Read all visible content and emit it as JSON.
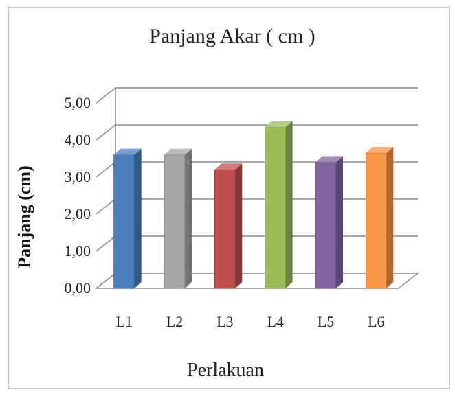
{
  "chart_data": {
    "type": "bar",
    "title": "Panjang Akar ( cm )",
    "xlabel": "Perlakuan",
    "ylabel": "Panjang (cm)",
    "categories": [
      "L1",
      "L2",
      "L3",
      "L4",
      "L5",
      "L6"
    ],
    "values": [
      3.6,
      3.6,
      3.2,
      4.35,
      3.4,
      3.65
    ],
    "ylim": [
      0,
      5
    ],
    "yticks": [
      "0,00",
      "1,00",
      "2,00",
      "3,00",
      "4,00",
      "5,00"
    ],
    "grid": true,
    "legend": "none",
    "colors": {
      "L1": "#4a7ebf",
      "L2": "#a6a6a6",
      "L3": "#c0504d",
      "L4": "#9bbb59",
      "L5": "#8064a2",
      "L6": "#f79646"
    }
  }
}
